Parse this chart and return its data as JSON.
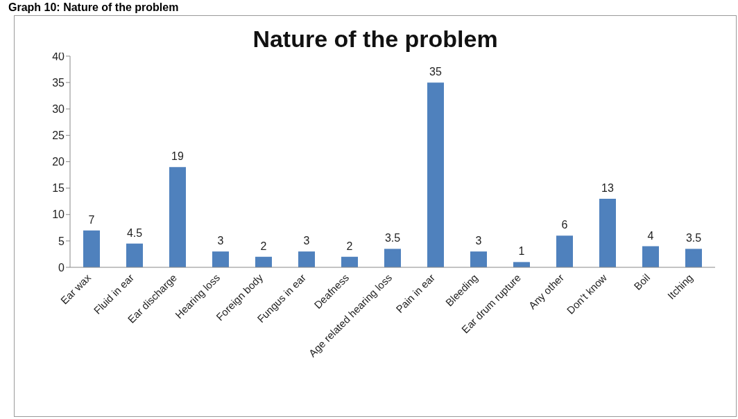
{
  "chart_data": {
    "type": "bar",
    "title": "Nature of the problem",
    "annotations": [
      "Graph 10: Nature of the problem"
    ],
    "categories": [
      "Ear wax",
      "Fluid in ear",
      "Ear discharge",
      "Hearing loss",
      "Foreign body",
      "Fungus in ear",
      "Deafness",
      "Age related hearing loss",
      "Pain in ear",
      "Bleeding",
      "Ear drum rupture",
      "Any other",
      "Don’t know",
      "Boil",
      "Itching"
    ],
    "values": [
      7,
      4.5,
      19,
      3,
      2,
      3,
      2,
      3.5,
      35,
      3,
      1,
      6,
      13,
      4,
      3.5
    ],
    "color": "#4f81bd",
    "ylim": [
      0,
      40
    ],
    "yticks": [
      0,
      5,
      10,
      15,
      20,
      25,
      30,
      35,
      40
    ],
    "grid": false,
    "data_labels": true,
    "legend": false
  }
}
